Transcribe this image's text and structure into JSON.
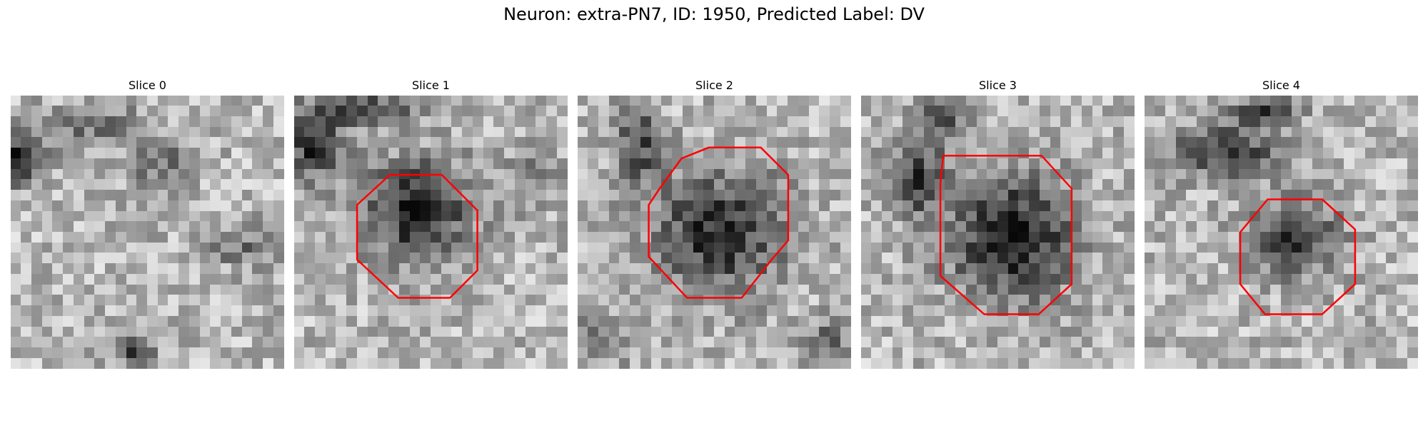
{
  "figure": {
    "title": "Neuron: extra-PN7, ID: 1950, Predicted Label: DV",
    "contour_color": "#ff0000"
  },
  "panels": [
    {
      "title": "Slice 0"
    },
    {
      "title": "Slice 1"
    },
    {
      "title": "Slice 2"
    },
    {
      "title": "Slice 3"
    },
    {
      "title": "Slice 4"
    }
  ]
}
